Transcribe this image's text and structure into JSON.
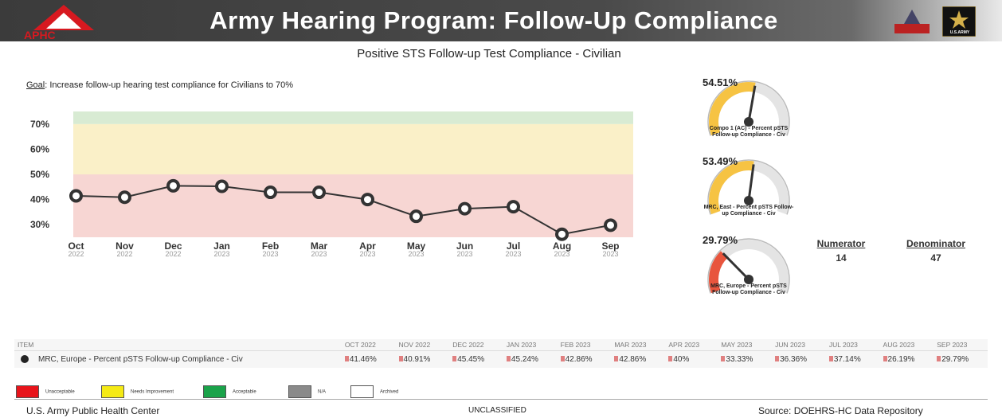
{
  "header": {
    "title": "Army Hearing Program: Follow-Up Compliance",
    "logo_left": "APHC",
    "logo_right": "U.S.ARMY"
  },
  "subtitle": "Positive STS Follow-up Test Compliance - Civilian",
  "goal": {
    "label": "Goal",
    "text": ": Increase follow-up hearing test compliance for Civilians to 70%"
  },
  "chart_data": [
    {
      "type": "line",
      "categories": [
        "Oct",
        "Nov",
        "Dec",
        "Jan",
        "Feb",
        "Mar",
        "Apr",
        "May",
        "Jun",
        "Jul",
        "Aug",
        "Sep"
      ],
      "years": [
        "2022",
        "2022",
        "2022",
        "2023",
        "2023",
        "2023",
        "2023",
        "2023",
        "2023",
        "2023",
        "2023",
        "2023"
      ],
      "values": [
        41.46,
        40.91,
        45.45,
        45.24,
        42.86,
        42.86,
        40,
        33.33,
        36.36,
        37.14,
        26.19,
        29.79
      ],
      "color": "#333333",
      "ylim": [
        25,
        75
      ],
      "yticks": [
        {
          "value": 30,
          "label": "30%"
        },
        {
          "value": 40,
          "label": "40%"
        },
        {
          "value": 50,
          "label": "50%"
        },
        {
          "value": 60,
          "label": "60%"
        },
        {
          "value": 70,
          "label": "70%"
        }
      ],
      "bands": [
        {
          "from": 25,
          "to": 50,
          "color": "#f7d6d3"
        },
        {
          "from": 50,
          "to": 70,
          "color": "#faf0c8"
        },
        {
          "from": 70,
          "to": 75,
          "color": "#d8ebd3"
        }
      ],
      "grid": false
    },
    {
      "type": "gauge",
      "title": "Compo 1 (AC) - Percent pSTS Follow-up Compliance - Civ",
      "values": [
        54.51
      ],
      "value_labels": [
        "54.51%"
      ],
      "range": [
        0,
        100
      ]
    },
    {
      "type": "gauge",
      "title": "MRC, East - Percent pSTS Follow-up Compliance - Civ",
      "values": [
        53.49
      ],
      "value_labels": [
        "53.49%"
      ],
      "range": [
        0,
        100
      ]
    },
    {
      "type": "gauge",
      "title": "MRC, Europe - Percent pSTS Follow-up Compliance - Civ",
      "values": [
        29.79
      ],
      "value_labels": [
        "29.79%"
      ],
      "range": [
        0,
        100
      ]
    }
  ],
  "numerator": {
    "label": "Numerator",
    "value": "14"
  },
  "denominator": {
    "label": "Denominator",
    "value": "47"
  },
  "table": {
    "header": [
      "ITEM",
      "OCT 2022",
      "NOV 2022",
      "DEC 2022",
      "JAN 2023",
      "FEB 2023",
      "MAR 2023",
      "APR 2023",
      "MAY 2023",
      "JUN 2023",
      "JUL 2023",
      "AUG 2023",
      "SEP 2023"
    ],
    "rows": [
      [
        "MRC, Europe - Percent pSTS Follow-up Compliance - Civ",
        "41.46%",
        "40.91%",
        "45.45%",
        "45.24%",
        "42.86%",
        "42.86%",
        "40%",
        "33.33%",
        "36.36%",
        "37.14%",
        "26.19%",
        "29.79%"
      ]
    ]
  },
  "legend": [
    {
      "label": "Unacceptable",
      "color": "#e8141b"
    },
    {
      "label": "Needs Improvement",
      "color": "#f5ea15"
    },
    {
      "label": "Acceptable",
      "color": "#1aa34a"
    },
    {
      "label": "N/A",
      "color": "#8a8a8a"
    },
    {
      "label": "Archived",
      "color": "#ffffff"
    }
  ],
  "footer": {
    "left": "U.S. Army Public Health Center",
    "center": "UNCLASSIFIED",
    "right": "Source: DOEHRS-HC Data Repository"
  }
}
